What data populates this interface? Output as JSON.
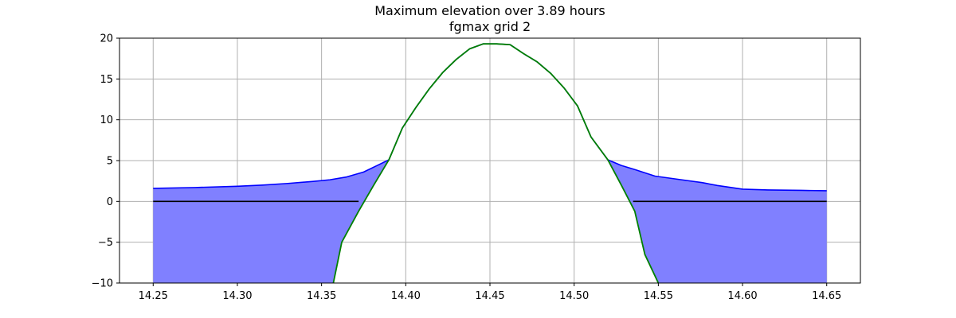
{
  "chart_data": {
    "type": "area",
    "title": "Maximum elevation over 3.89 hours",
    "subtitle": "fgmax grid 2",
    "xlabel": "",
    "ylabel": "",
    "xlim": [
      14.23,
      14.67
    ],
    "ylim": [
      -10,
      20
    ],
    "grid": true,
    "x_ticks": [
      "14.25",
      "14.30",
      "14.35",
      "14.40",
      "14.45",
      "14.50",
      "14.55",
      "14.60",
      "14.65"
    ],
    "y_ticks": [
      "−10",
      "−5",
      "0",
      "5",
      "10",
      "15",
      "20"
    ],
    "series": [
      {
        "role": "max_surface",
        "color": "#0000ff",
        "fill_color": "#8080ff",
        "x": [
          14.25,
          14.275,
          14.3,
          14.315,
          14.33,
          14.345,
          14.355,
          14.365,
          14.375,
          14.383,
          14.39,
          14.398,
          14.406,
          14.414,
          14.422,
          14.43,
          14.438,
          14.446,
          14.454,
          14.462,
          14.47,
          14.478,
          14.486,
          14.494,
          14.502,
          14.51,
          14.52,
          14.528,
          14.536,
          14.548,
          14.562,
          14.576,
          14.585,
          14.6,
          14.615,
          14.635,
          14.65
        ],
        "y": [
          1.6,
          1.7,
          1.85,
          2.0,
          2.2,
          2.45,
          2.65,
          3.0,
          3.6,
          4.4,
          5.1,
          9.0,
          11.5,
          13.8,
          15.8,
          17.4,
          18.7,
          19.3,
          19.3,
          19.2,
          18.1,
          17.1,
          15.7,
          13.9,
          11.7,
          7.9,
          5.1,
          4.4,
          3.9,
          3.1,
          2.7,
          2.3,
          1.95,
          1.5,
          1.4,
          1.35,
          1.3
        ]
      },
      {
        "role": "topography",
        "color": "#008000",
        "x": [
          14.357,
          14.362,
          14.372,
          14.381,
          14.39,
          14.398,
          14.406,
          14.414,
          14.422,
          14.43,
          14.438,
          14.446,
          14.454,
          14.462,
          14.47,
          14.478,
          14.486,
          14.494,
          14.502,
          14.51,
          14.52,
          14.528,
          14.536,
          14.542,
          14.55
        ],
        "y": [
          -10.0,
          -5.0,
          -1.2,
          2.0,
          5.1,
          9.0,
          11.5,
          13.8,
          15.8,
          17.4,
          18.7,
          19.3,
          19.3,
          19.2,
          18.1,
          17.1,
          15.7,
          13.9,
          11.7,
          7.9,
          5.1,
          2.0,
          -1.2,
          -6.5,
          -10.0
        ]
      },
      {
        "role": "shoreline_left",
        "color": "#000000",
        "x": [
          14.25,
          14.372
        ],
        "y": [
          0,
          0
        ]
      },
      {
        "role": "shoreline_right",
        "color": "#000000",
        "x": [
          14.535,
          14.65
        ],
        "y": [
          0,
          0
        ]
      }
    ]
  }
}
